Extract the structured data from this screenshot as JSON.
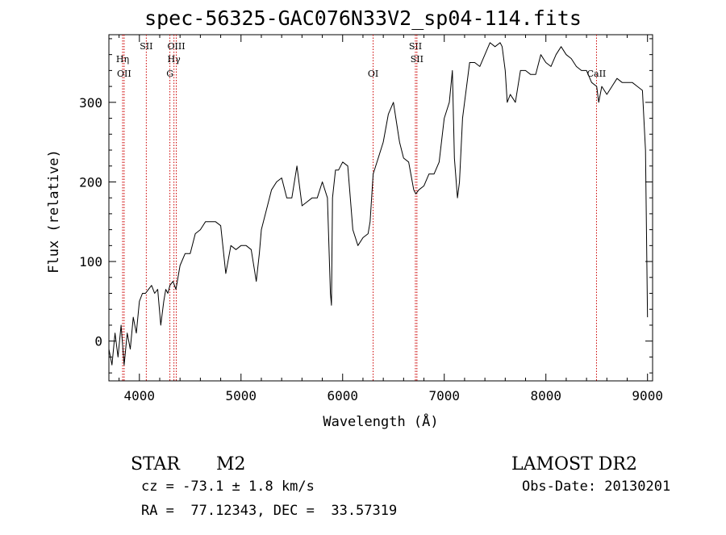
{
  "chart_data": {
    "type": "line",
    "title": "spec-56325-GAC076N33V2_sp04-114.fits",
    "xlabel": "Wavelength (Å)",
    "ylabel": "Flux (relative)",
    "xlim": [
      3700,
      9050
    ],
    "ylim": [
      -50,
      385
    ],
    "x_ticks": [
      4000,
      5000,
      6000,
      7000,
      8000,
      9000
    ],
    "y_ticks": [
      0,
      100,
      200,
      300
    ],
    "grid": false,
    "line_color": "#000000",
    "marker_color": "#cc0000",
    "series": [
      {
        "x": [
          3700,
          3730,
          3760,
          3790,
          3820,
          3850,
          3880,
          3910,
          3940,
          3970,
          4000,
          4030,
          4060,
          4090,
          4120,
          4150,
          4180,
          4210,
          4240,
          4260,
          4280,
          4300,
          4330,
          4360,
          4400,
          4450,
          4500,
          4550,
          4600,
          4650,
          4700,
          4750,
          4800,
          4850,
          4900,
          4950,
          5000,
          5050,
          5100,
          5150,
          5180,
          5200,
          5250,
          5300,
          5350,
          5400,
          5450,
          5500,
          5550,
          5600,
          5650,
          5700,
          5750,
          5800,
          5850,
          5880,
          5890,
          5900,
          5930,
          5960,
          6000,
          6050,
          6100,
          6150,
          6200,
          6250,
          6270,
          6300,
          6350,
          6400,
          6450,
          6500,
          6530,
          6560,
          6600,
          6650,
          6700,
          6720,
          6750,
          6800,
          6850,
          6900,
          6950,
          7000,
          7050,
          7080,
          7100,
          7130,
          7150,
          7180,
          7200,
          7250,
          7300,
          7350,
          7400,
          7450,
          7500,
          7550,
          7570,
          7600,
          7620,
          7650,
          7700,
          7750,
          7800,
          7850,
          7900,
          7950,
          8000,
          8050,
          8100,
          8150,
          8200,
          8250,
          8300,
          8350,
          8400,
          8450,
          8500,
          8520,
          8550,
          8600,
          8650,
          8700,
          8750,
          8800,
          8850,
          8900,
          8950,
          8980,
          9000
        ],
        "y": [
          -10,
          -30,
          10,
          -20,
          20,
          -30,
          10,
          -10,
          30,
          10,
          50,
          60,
          60,
          65,
          70,
          60,
          65,
          20,
          50,
          65,
          60,
          70,
          75,
          65,
          95,
          110,
          110,
          135,
          140,
          150,
          150,
          150,
          145,
          85,
          120,
          115,
          120,
          120,
          115,
          75,
          110,
          140,
          165,
          190,
          200,
          205,
          180,
          180,
          220,
          170,
          175,
          180,
          180,
          200,
          180,
          60,
          45,
          180,
          215,
          215,
          225,
          220,
          140,
          120,
          130,
          135,
          150,
          210,
          230,
          250,
          285,
          300,
          275,
          250,
          230,
          225,
          190,
          185,
          190,
          195,
          210,
          210,
          225,
          280,
          300,
          340,
          230,
          180,
          200,
          280,
          300,
          350,
          350,
          345,
          360,
          375,
          370,
          375,
          370,
          340,
          300,
          310,
          300,
          340,
          340,
          335,
          335,
          360,
          350,
          345,
          360,
          370,
          360,
          355,
          345,
          340,
          340,
          325,
          320,
          300,
          320,
          310,
          320,
          330,
          325,
          325,
          325,
          320,
          315,
          240,
          30
        ]
      }
    ],
    "line_markers": [
      {
        "wavelength": 3835,
        "label": "Hη",
        "row": 2
      },
      {
        "wavelength": 3850,
        "label": "OII",
        "row": 3
      },
      {
        "wavelength": 4068,
        "label": "SII",
        "row": 1
      },
      {
        "wavelength": 4300,
        "label": "G",
        "row": 3
      },
      {
        "wavelength": 4340,
        "label": "Hγ",
        "row": 2
      },
      {
        "wavelength": 4363,
        "label": "OIII",
        "row": 1
      },
      {
        "wavelength": 6300,
        "label": "OI",
        "row": 3
      },
      {
        "wavelength": 6716,
        "label": "SII",
        "row": 1
      },
      {
        "wavelength": 6731,
        "label": "SII",
        "row": 2
      },
      {
        "wavelength": 8498,
        "label": "CaII",
        "row": 3
      }
    ]
  },
  "info": {
    "object_class": "STAR",
    "subclass": "M2",
    "cz": "cz = -73.1 ± 1.8 km/s",
    "coords": "RA =  77.12343, DEC =  33.57319",
    "survey": "LAMOST DR2",
    "obs_date": "Obs-Date: 20130201"
  }
}
